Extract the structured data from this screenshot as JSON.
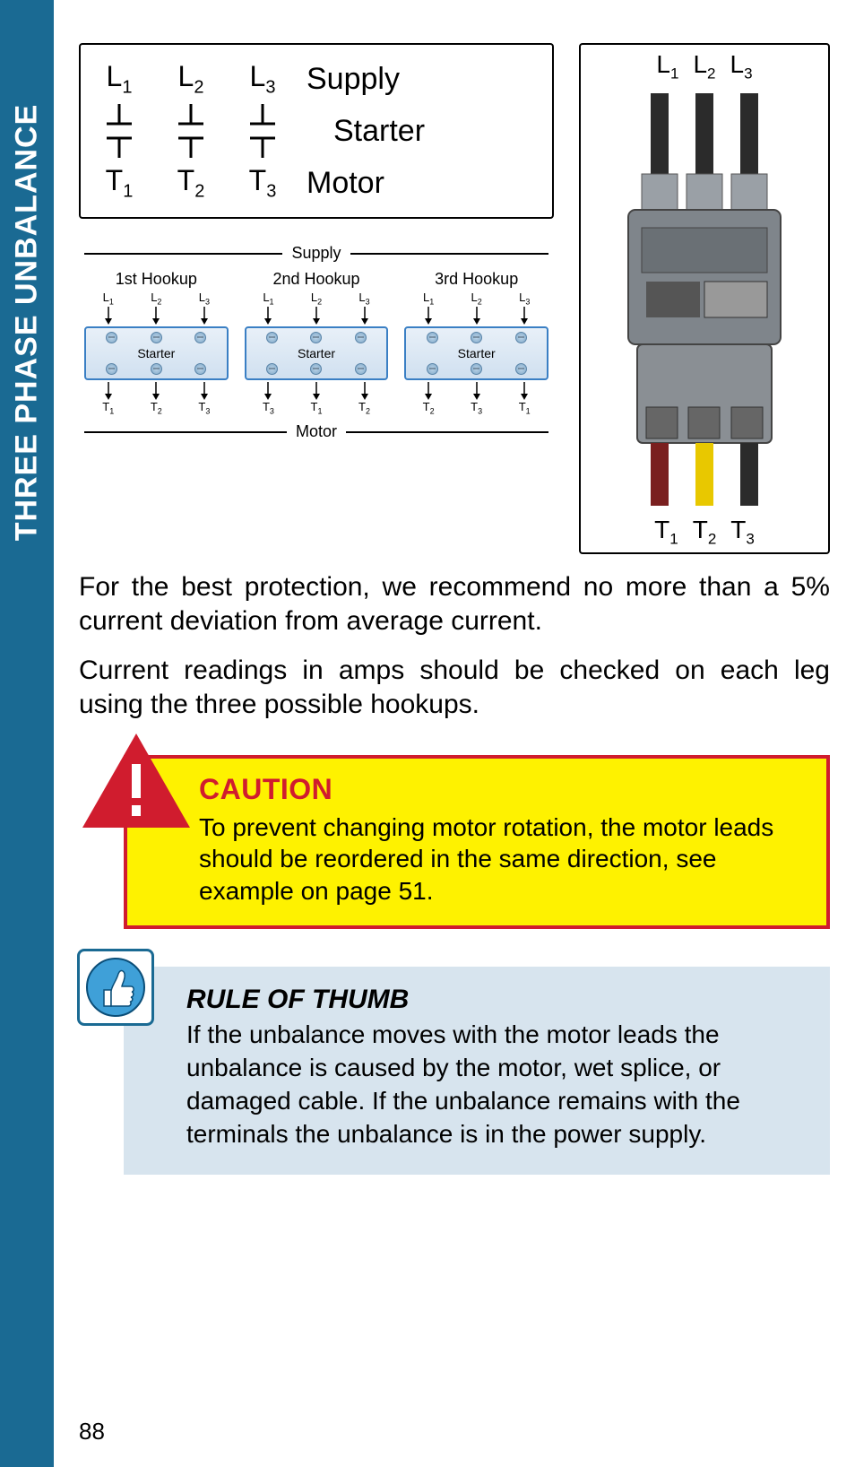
{
  "side_tab": "THREE PHASE UNBALANCE",
  "page_number": "88",
  "schematic": {
    "supply_terms": [
      "L1",
      "L2",
      "L3"
    ],
    "motor_terms": [
      "T1",
      "T2",
      "T3"
    ],
    "labels": {
      "supply": "Supply",
      "starter": "Starter",
      "motor": "Motor"
    }
  },
  "hookups": {
    "header": "Supply",
    "footer": "Motor",
    "starter_label": "Starter",
    "items": [
      {
        "title": "1st Hookup",
        "top": [
          "L1",
          "L2",
          "L3"
        ],
        "bot": [
          "T1",
          "T2",
          "T3"
        ]
      },
      {
        "title": "2nd Hookup",
        "top": [
          "L1",
          "L2",
          "L3"
        ],
        "bot": [
          "T3",
          "T1",
          "T2"
        ]
      },
      {
        "title": "3rd Hookup",
        "top": [
          "L1",
          "L2",
          "L3"
        ],
        "bot": [
          "T2",
          "T3",
          "T1"
        ]
      }
    ]
  },
  "photo": {
    "top": [
      "L1",
      "L2",
      "L3"
    ],
    "bot": [
      "T1",
      "T2",
      "T3"
    ],
    "wire_colors_top": [
      "#2b2b2b",
      "#2b2b2b",
      "#2b2b2b"
    ],
    "wire_colors_bot": [
      "#7a1f1f",
      "#e8c800",
      "#2b2b2b"
    ]
  },
  "body": {
    "p1": "For the best protection, we recommend no more than a 5% current deviation from average current.",
    "p2": "Current readings in amps should be checked on each leg using the three possible hookups."
  },
  "caution": {
    "title": "CAUTION",
    "text": "To prevent changing motor rotation, the motor leads should be reordered in the same direction, see example on page 51.",
    "border_color": "#d01c2e",
    "bg_color": "#fef200"
  },
  "rule_of_thumb": {
    "title": "RULE OF THUMB",
    "text": "If the unbalance moves with the motor leads the unbalance is caused by the motor, wet splice, or damaged cable. If the unbalance remains with the terminals the unbalance is in the power supply.",
    "bg_color": "#d7e4ee"
  },
  "colors": {
    "brand_blue": "#1a6a93",
    "starter_border": "#3a7fc4"
  }
}
